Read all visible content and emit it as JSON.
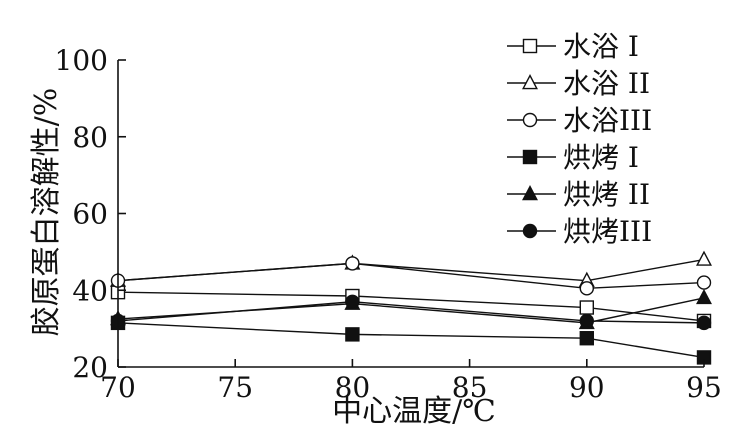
{
  "chart_data": {
    "type": "line",
    "title": "",
    "xlabel": "中心温度/℃",
    "ylabel": "胶原蛋白溶解性/%",
    "x": [
      70,
      80,
      90,
      95
    ],
    "xlim": [
      70,
      95
    ],
    "ylim": [
      20,
      100
    ],
    "x_ticks": [
      70,
      75,
      80,
      85,
      90,
      95
    ],
    "y_ticks": [
      20,
      40,
      60,
      80,
      100
    ],
    "x_tick_labels": [
      "70",
      "75",
      "80",
      "85",
      "90",
      "95"
    ],
    "y_tick_labels": [
      "20",
      "40",
      "60",
      "80",
      "100"
    ],
    "grid": false,
    "legend_position": "top-right",
    "series": [
      {
        "name": "水浴 I",
        "marker": "square",
        "filled": false,
        "values": [
          39.5,
          38.5,
          35.5,
          32
        ]
      },
      {
        "name": "水浴 II",
        "marker": "triangle",
        "filled": false,
        "values": [
          42.5,
          47,
          42.5,
          48
        ]
      },
      {
        "name": "水浴III",
        "marker": "circle",
        "filled": false,
        "values": [
          42.5,
          47,
          40.5,
          42
        ]
      },
      {
        "name": "烘烤 I",
        "marker": "square",
        "filled": true,
        "values": [
          31.5,
          28.5,
          27.5,
          22.5
        ]
      },
      {
        "name": "烘烤 II",
        "marker": "triangle",
        "filled": true,
        "values": [
          32.5,
          36.5,
          31.5,
          38
        ]
      },
      {
        "name": "烘烤III",
        "marker": "circle",
        "filled": true,
        "values": [
          32,
          37,
          32,
          31.5
        ]
      }
    ],
    "colors": {
      "line": "#111111",
      "marker_stroke": "#111111",
      "marker_fill_filled": "#111111",
      "marker_fill_open": "#ffffff",
      "background": "#ffffff"
    }
  }
}
